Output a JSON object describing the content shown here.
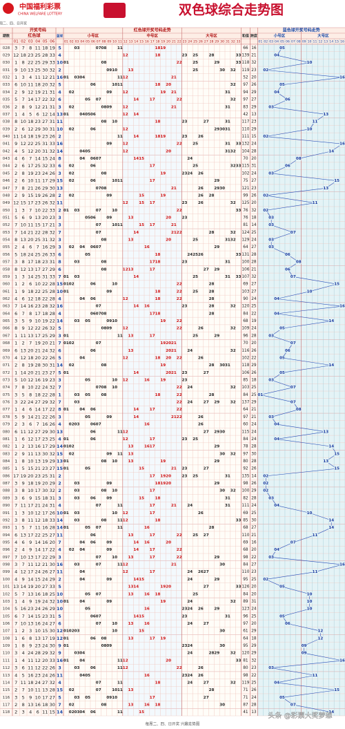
{
  "header": {
    "logo": "中国福利彩票",
    "logo_en": "CHINA WELFARE LOTTERY",
    "title": "双色球综合走势图",
    "subtitle": "开奖时间：每周二、四、日开奖"
  },
  "columns": {
    "issue": "期数",
    "draw": "开奖号码",
    "reds": "红色球",
    "blue": "蓝球",
    "red_trend": "红色球开奖号码走势",
    "red_zones": [
      "小号区",
      "中号区",
      "大号区"
    ],
    "ball_cols": [
      "01",
      "02",
      "03",
      "04",
      "05",
      "06"
    ],
    "red_cols": [
      "01",
      "02",
      "03",
      "04",
      "05",
      "06",
      "07",
      "08",
      "09",
      "10",
      "11",
      "12",
      "13",
      "14",
      "15",
      "16",
      "17",
      "18",
      "19",
      "20",
      "21",
      "22",
      "23",
      "24",
      "25",
      "26",
      "27",
      "28",
      "29",
      "30",
      "31",
      "32",
      "33"
    ],
    "sum": "和值",
    "span": "跨度",
    "blue_trend": "蓝色球开奖号码走势",
    "blue_zones": [
      "小号区",
      "大号区"
    ],
    "blue_cols": [
      "01",
      "02",
      "03",
      "04",
      "05",
      "06",
      "07",
      "08",
      "09",
      "10",
      "11",
      "12",
      "13",
      "14",
      "15",
      "16"
    ]
  },
  "rows": [
    {
      "issue": "028",
      "reds": [
        3,
        7,
        8,
        11,
        18,
        19
      ],
      "blue": 5,
      "sum": 66,
      "span": 16
    },
    {
      "issue": "029",
      "reds": [
        12,
        18,
        23,
        25,
        28,
        33
      ],
      "blue": 4,
      "sum": 139,
      "span": 21
    },
    {
      "issue": "030",
      "reds": [
        1,
        8,
        22,
        25,
        29,
        33
      ],
      "blue": 10,
      "sum": 118,
      "span": 32
    },
    {
      "issue": "031",
      "reds": [
        9,
        10,
        13,
        25,
        30,
        32
      ],
      "blue": 2,
      "sum": 119,
      "span": 23
    },
    {
      "issue": "032",
      "reds": [
        1,
        3,
        4,
        11,
        12,
        21
      ],
      "blue": 16,
      "sum": 52,
      "span": 20
    },
    {
      "issue": "033",
      "reds": [
        6,
        10,
        11,
        18,
        20,
        32
      ],
      "blue": 5,
      "sum": 97,
      "span": 26
    },
    {
      "issue": "034",
      "reds": [
        2,
        9,
        12,
        19,
        21,
        31
      ],
      "blue": 4,
      "sum": 94,
      "span": 29
    },
    {
      "issue": "035",
      "reds": [
        5,
        7,
        14,
        17,
        22,
        32
      ],
      "blue": 6,
      "sum": 97,
      "span": 27
    },
    {
      "issue": "036",
      "reds": [
        2,
        8,
        9,
        12,
        21,
        31
      ],
      "blue": 3,
      "sum": 83,
      "span": 29
    },
    {
      "issue": "037",
      "reds": [
        1,
        4,
        5,
        6,
        12,
        14
      ],
      "blue": 13,
      "sum": 42,
      "span": 13
    },
    {
      "issue": "038",
      "reds": [
        8,
        10,
        18,
        23,
        27,
        31
      ],
      "blue": 11,
      "sum": 117,
      "span": 23
    },
    {
      "issue": "039",
      "reds": [
        2,
        6,
        12,
        29,
        30,
        31
      ],
      "blue": 10,
      "sum": 110,
      "span": 29
    },
    {
      "issue": "040",
      "reds": [
        11,
        14,
        18,
        19,
        23,
        26
      ],
      "blue": 2,
      "sum": 111,
      "span": 15
    },
    {
      "issue": "041",
      "reds": [
        9,
        12,
        22,
        25,
        31,
        33
      ],
      "blue": 16,
      "sum": 132,
      "span": 24
    },
    {
      "issue": "042",
      "reds": [
        4,
        5,
        12,
        20,
        31,
        32
      ],
      "blue": 14,
      "sum": 104,
      "span": 28
    },
    {
      "issue": "043",
      "reds": [
        4,
        6,
        7,
        14,
        15,
        24
      ],
      "blue": 8,
      "sum": 70,
      "span": 20
    },
    {
      "issue": "044",
      "reds": [
        2,
        6,
        17,
        25,
        32,
        33
      ],
      "blue": 6,
      "sum": 115,
      "span": 31
    },
    {
      "issue": "045",
      "reds": [
        2,
        8,
        19,
        23,
        24,
        26
      ],
      "blue": 3,
      "sum": 102,
      "span": 24
    },
    {
      "issue": "046",
      "reds": [
        2,
        6,
        10,
        11,
        17,
        29
      ],
      "blue": 15,
      "sum": 75,
      "span": 27
    },
    {
      "issue": "047",
      "reds": [
        7,
        8,
        21,
        26,
        29,
        30
      ],
      "blue": 13,
      "sum": 121,
      "span": 23
    },
    {
      "issue": "048",
      "reds": [
        2,
        9,
        15,
        19,
        26,
        28
      ],
      "blue": 2,
      "sum": 99,
      "span": 26
    },
    {
      "issue": "049",
      "reds": [
        12,
        15,
        17,
        23,
        26,
        32
      ],
      "blue": 11,
      "sum": 125,
      "span": 20
    },
    {
      "issue": "050",
      "reds": [
        1,
        3,
        7,
        10,
        22,
        33
      ],
      "blue": 2,
      "sum": 76,
      "span": 32
    },
    {
      "issue": "051",
      "reds": [
        5,
        6,
        9,
        13,
        20,
        23
      ],
      "blue": 3,
      "sum": 76,
      "span": 18
    },
    {
      "issue": "052",
      "reds": [
        7,
        10,
        11,
        15,
        17,
        21
      ],
      "blue": 3,
      "sum": 81,
      "span": 14
    },
    {
      "issue": "053",
      "reds": [
        7,
        14,
        21,
        22,
        28,
        32
      ],
      "blue": 7,
      "sum": 124,
      "span": 25
    },
    {
      "issue": "054",
      "reds": [
        8,
        13,
        20,
        25,
        31,
        32
      ],
      "blue": 3,
      "sum": 129,
      "span": 24
    },
    {
      "issue": "055",
      "reds": [
        2,
        4,
        6,
        7,
        16,
        29
      ],
      "blue": 3,
      "sum": 64,
      "span": 27
    },
    {
      "issue": "056",
      "reds": [
        5,
        18,
        24,
        25,
        26,
        33
      ],
      "blue": 6,
      "sum": 131,
      "span": 28
    },
    {
      "issue": "057",
      "reds": [
        3,
        8,
        17,
        18,
        23,
        31
      ],
      "blue": 8,
      "sum": 100,
      "span": 28
    },
    {
      "issue": "058",
      "reds": [
        8,
        12,
        13,
        17,
        27,
        29
      ],
      "blue": 6,
      "sum": 106,
      "span": 21
    },
    {
      "issue": "059",
      "reds": [
        1,
        3,
        14,
        25,
        31,
        33
      ],
      "blue": 7,
      "sum": 107,
      "span": 32
    },
    {
      "issue": "060",
      "reds": [
        1,
        2,
        6,
        10,
        22,
        28
      ],
      "blue": 15,
      "sum": 69,
      "span": 27
    },
    {
      "issue": "061",
      "reds": [
        1,
        9,
        18,
        22,
        25,
        28
      ],
      "blue": 10,
      "sum": 103,
      "span": 27
    },
    {
      "issue": "062",
      "reds": [
        4,
        6,
        12,
        18,
        22,
        28
      ],
      "blue": 4,
      "sum": 90,
      "span": 24
    },
    {
      "issue": "063",
      "reds": [
        7,
        14,
        16,
        23,
        28,
        32
      ],
      "blue": 16,
      "sum": 120,
      "span": 25
    },
    {
      "issue": "064",
      "reds": [
        6,
        7,
        8,
        17,
        18,
        28
      ],
      "blue": 4,
      "sum": 84,
      "span": 22
    },
    {
      "issue": "065",
      "reds": [
        3,
        5,
        9,
        10,
        19,
        22
      ],
      "blue": 14,
      "sum": 68,
      "span": 19
    },
    {
      "issue": "066",
      "reds": [
        8,
        9,
        12,
        22,
        26,
        32
      ],
      "blue": 5,
      "sum": 109,
      "span": 24
    },
    {
      "issue": "067",
      "reds": [
        1,
        11,
        13,
        17,
        25,
        29
      ],
      "blue": 3,
      "sum": 96,
      "span": 28
    },
    {
      "issue": "068",
      "reds": [
        1,
        2,
        7,
        19,
        20,
        21
      ],
      "blue": 7,
      "sum": 70,
      "span": 20
    },
    {
      "issue": "069",
      "reds": [
        6,
        13,
        20,
        21,
        24,
        32
      ],
      "blue": 6,
      "sum": 116,
      "span": 26
    },
    {
      "issue": "070",
      "reds": [
        4,
        12,
        18,
        20,
        22,
        26
      ],
      "blue": 5,
      "sum": 102,
      "span": 22
    },
    {
      "issue": "071",
      "reds": [
        2,
        8,
        19,
        28,
        30,
        31
      ],
      "blue": 14,
      "sum": 118,
      "span": 29
    },
    {
      "issue": "072",
      "reds": [
        1,
        14,
        20,
        21,
        23,
        27
      ],
      "blue": 5,
      "sum": 106,
      "span": 26
    },
    {
      "issue": "073",
      "reds": [
        5,
        10,
        12,
        16,
        19,
        23
      ],
      "blue": 3,
      "sum": 85,
      "span": 18
    },
    {
      "issue": "074",
      "reds": [
        7,
        8,
        10,
        22,
        24,
        32
      ],
      "blue": 7,
      "sum": 103,
      "span": 25
    },
    {
      "issue": "075",
      "reds": [
        3,
        5,
        8,
        18,
        22,
        28
      ],
      "blue": 1,
      "sum": 84,
      "span": 25
    },
    {
      "issue": "076",
      "reds": [
        3,
        22,
        24,
        27,
        29,
        32
      ],
      "blue": 7,
      "sum": 137,
      "span": 29
    },
    {
      "issue": "077",
      "reds": [
        1,
        4,
        6,
        14,
        17,
        22
      ],
      "blue": 8,
      "sum": 64,
      "span": 21
    },
    {
      "issue": "078",
      "reds": [
        5,
        9,
        14,
        21,
        22,
        26
      ],
      "blue": 3,
      "sum": 97,
      "span": 21
    },
    {
      "issue": "079",
      "reds": [
        2,
        3,
        6,
        7,
        16,
        26
      ],
      "blue": 4,
      "sum": 60,
      "span": 24
    },
    {
      "issue": "080",
      "reds": [
        6,
        11,
        12,
        27,
        29,
        30
      ],
      "blue": 13,
      "sum": 115,
      "span": 24
    },
    {
      "issue": "081",
      "reds": [
        1,
        6,
        12,
        17,
        23,
        25
      ],
      "blue": 4,
      "sum": 84,
      "span": 24
    },
    {
      "issue": "082",
      "reds": [
        1,
        2,
        13,
        16,
        17,
        29
      ],
      "blue": 14,
      "sum": 78,
      "span": 28
    },
    {
      "issue": "083",
      "reds": [
        2,
        9,
        11,
        13,
        30,
        32
      ],
      "blue": 15,
      "sum": 97,
      "span": 30
    },
    {
      "issue": "084",
      "reds": [
        1,
        8,
        10,
        13,
        19,
        29
      ],
      "blue": 13,
      "sum": 80,
      "span": 28
    },
    {
      "issue": "085",
      "reds": [
        1,
        5,
        15,
        21,
        23,
        27
      ],
      "blue": 15,
      "sum": 92,
      "span": 26
    },
    {
      "issue": "086",
      "reds": [
        17,
        19,
        20,
        23,
        25,
        31
      ],
      "blue": 2,
      "sum": 135,
      "span": 14
    },
    {
      "issue": "087",
      "reds": [
        3,
        9,
        18,
        19,
        20,
        29
      ],
      "blue": 2,
      "sum": 98,
      "span": 26
    },
    {
      "issue": "088",
      "reds": [
        3,
        8,
        10,
        17,
        30,
        32
      ],
      "blue": 2,
      "sum": 100,
      "span": 29
    },
    {
      "issue": "089",
      "reds": [
        3,
        6,
        9,
        15,
        18,
        31
      ],
      "blue": 3,
      "sum": 82,
      "span": 28
    },
    {
      "issue": "090",
      "reds": [
        7,
        11,
        17,
        21,
        24,
        31
      ],
      "blue": 4,
      "sum": 111,
      "span": 24
    },
    {
      "issue": "091",
      "reds": [
        1,
        3,
        10,
        12,
        17,
        26
      ],
      "blue": 10,
      "sum": 69,
      "span": 25
    },
    {
      "issue": "092",
      "reds": [
        3,
        8,
        11,
        12,
        18,
        33
      ],
      "blue": 14,
      "sum": 85,
      "span": 30
    },
    {
      "issue": "093",
      "reds": [
        1,
        5,
        7,
        11,
        16,
        28
      ],
      "blue": 14,
      "sum": 68,
      "span": 27
    },
    {
      "issue": "094",
      "reds": [
        6,
        13,
        17,
        22,
        25,
        27
      ],
      "blue": 11,
      "sum": 110,
      "span": 21
    },
    {
      "issue": "095",
      "reds": [
        4,
        6,
        9,
        14,
        16,
        20
      ],
      "blue": 7,
      "sum": 69,
      "span": 16
    },
    {
      "issue": "096",
      "reds": [
        2,
        4,
        9,
        14,
        17,
        22
      ],
      "blue": 4,
      "sum": 68,
      "span": 20
    },
    {
      "issue": "097",
      "reds": [
        7,
        10,
        13,
        17,
        22,
        29
      ],
      "blue": 3,
      "sum": 98,
      "span": 22
    },
    {
      "issue": "098",
      "reds": [
        3,
        7,
        11,
        12,
        21,
        30
      ],
      "blue": 16,
      "sum": 84,
      "span": 27
    },
    {
      "issue": "099",
      "reds": [
        4,
        12,
        17,
        24,
        26,
        27
      ],
      "blue": 11,
      "sum": 110,
      "span": 23
    },
    {
      "issue": "100",
      "reds": [
        4,
        9,
        14,
        15,
        24,
        29
      ],
      "blue": 2,
      "sum": 95,
      "span": 25
    },
    {
      "issue": "101",
      "reds": [
        13,
        14,
        19,
        20,
        27,
        33
      ],
      "blue": 5,
      "sum": 126,
      "span": 20
    },
    {
      "issue": "102",
      "reds": [
        5,
        7,
        13,
        16,
        18,
        25
      ],
      "blue": 10,
      "sum": 84,
      "span": 20
    },
    {
      "issue": "103",
      "reds": [
        1,
        4,
        9,
        19,
        24,
        32
      ],
      "blue": 10,
      "sum": 89,
      "span": 31
    },
    {
      "issue": "104",
      "reds": [
        5,
        16,
        23,
        24,
        26,
        29
      ],
      "blue": 10,
      "sum": 123,
      "span": 24
    },
    {
      "issue": "105",
      "reds": [
        6,
        7,
        14,
        15,
        23,
        31
      ],
      "blue": 5,
      "sum": 96,
      "span": 25
    },
    {
      "issue": "106",
      "reds": [
        7,
        10,
        13,
        16,
        24,
        27
      ],
      "blue": 6,
      "sum": 97,
      "span": 20
    },
    {
      "issue": "107",
      "reds": [
        1,
        2,
        3,
        10,
        15,
        30
      ],
      "blue": 12,
      "sum": 61,
      "span": 29
    },
    {
      "issue": "108",
      "reds": [
        1,
        6,
        8,
        13,
        17,
        19
      ],
      "blue": 12,
      "sum": 64,
      "span": 18
    },
    {
      "issue": "109",
      "reds": [
        1,
        8,
        9,
        23,
        24,
        30
      ],
      "blue": 9,
      "sum": 95,
      "span": 29
    },
    {
      "issue": "110",
      "reds": [
        3,
        4,
        24,
        28,
        29,
        32
      ],
      "blue": 9,
      "sum": 120,
      "span": 29
    },
    {
      "issue": "111",
      "reds": [
        1,
        4,
        11,
        12,
        20,
        33
      ],
      "blue": 16,
      "sum": 81,
      "span": 32
    },
    {
      "issue": "112",
      "reds": [
        3,
        6,
        11,
        12,
        22,
        26
      ],
      "blue": 3,
      "sum": 80,
      "span": 23
    },
    {
      "issue": "113",
      "reds": [
        4,
        5,
        16,
        23,
        24,
        26
      ],
      "blue": 11,
      "sum": 98,
      "span": 22
    },
    {
      "issue": "114",
      "reds": [
        7,
        11,
        18,
        24,
        27,
        32
      ],
      "blue": 4,
      "sum": 119,
      "span": 25
    },
    {
      "issue": "115",
      "reds": [
        2,
        7,
        10,
        11,
        13,
        28
      ],
      "blue": 15,
      "sum": 71,
      "span": 26
    },
    {
      "issue": "116",
      "reds": [
        3,
        5,
        9,
        10,
        17,
        27
      ],
      "blue": 5,
      "sum": 71,
      "span": 24
    },
    {
      "issue": "117",
      "reds": [
        2,
        8,
        13,
        16,
        18,
        30
      ],
      "blue": 7,
      "sum": 87,
      "span": 28
    },
    {
      "issue": "118",
      "reds": [
        2,
        3,
        4,
        6,
        11,
        15
      ],
      "blue": 14,
      "sum": 41,
      "span": 13
    }
  ],
  "footer": "每周二、四、日开奖  兴趣走势图",
  "watermark": "头条 @彩票大奖梦想"
}
